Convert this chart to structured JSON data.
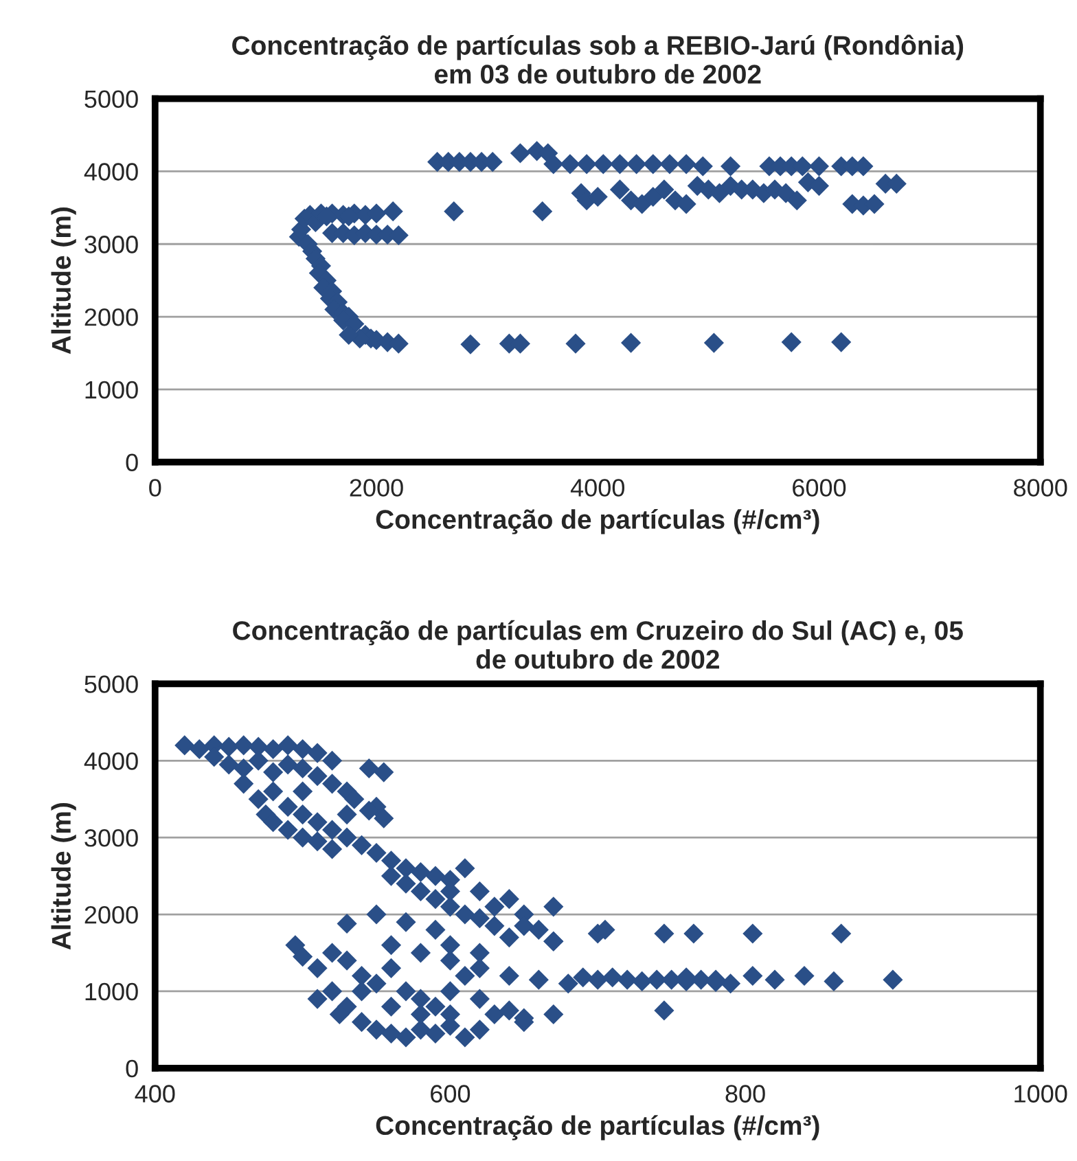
{
  "chart_data": [
    {
      "type": "scatter",
      "title": "Concentração de partículas sob a REBIO-Jarú (Rondônia)\nem 03 de outubro de 2002",
      "xlabel": "Concentração de partículas (#/cm³)",
      "ylabel": "Altitude (m)",
      "color": "#2a4f88",
      "marker": "diamond",
      "grid": "y",
      "xlim": [
        0,
        8000
      ],
      "xticks": [
        0,
        2000,
        4000,
        6000,
        8000
      ],
      "ylim": [
        0,
        5000
      ],
      "yticks": [
        0,
        1000,
        2000,
        3000,
        4000,
        5000
      ],
      "x": [
        1300,
        1320,
        1350,
        1400,
        1450,
        1380,
        1420,
        1450,
        1500,
        1480,
        1550,
        1520,
        1600,
        1580,
        1650,
        1620,
        1700,
        1750,
        1700,
        1800,
        1900,
        1950,
        2000,
        2100,
        2200,
        1850,
        1750,
        1500,
        1600,
        1700,
        1800,
        1900,
        2000,
        1550,
        1750,
        1600,
        1700,
        1800,
        1900,
        2000,
        2100,
        2200,
        2150,
        2700,
        3500,
        2850,
        3200,
        3300,
        3800,
        4300,
        5050,
        5750,
        6200,
        2550,
        2650,
        2750,
        2850,
        2950,
        3050,
        3300,
        3450,
        3550,
        3600,
        3750,
        3900,
        4050,
        4200,
        4350,
        4500,
        4650,
        4800,
        4950,
        5200,
        5550,
        5650,
        5750,
        5850,
        6000,
        6200,
        6300,
        6400,
        3850,
        3900,
        4000,
        4200,
        4300,
        4400,
        4500,
        4600,
        4700,
        4800,
        4900,
        5000,
        5100,
        5200,
        5300,
        5400,
        5500,
        5600,
        5700,
        5800,
        5900,
        6000,
        6300,
        6400,
        6500,
        6600,
        6700
      ],
      "values": [
        3100,
        3200,
        3350,
        3400,
        3300,
        3000,
        2900,
        2800,
        2700,
        2600,
        2500,
        2400,
        2350,
        2250,
        2200,
        2100,
        2050,
        2000,
        1950,
        1900,
        1750,
        1700,
        1680,
        1650,
        1630,
        1700,
        1750,
        3420,
        3420,
        3400,
        3420,
        3400,
        3420,
        3380,
        3380,
        3150,
        3150,
        3120,
        3150,
        3130,
        3130,
        3120,
        3450,
        3450,
        3450,
        1620,
        1630,
        1630,
        1630,
        1640,
        1640,
        1650,
        1650,
        4130,
        4130,
        4130,
        4130,
        4130,
        4130,
        4250,
        4280,
        4250,
        4100,
        4100,
        4100,
        4100,
        4100,
        4100,
        4100,
        4100,
        4100,
        4070,
        4070,
        4070,
        4070,
        4070,
        4070,
        4070,
        4070,
        4070,
        4070,
        3700,
        3600,
        3650,
        3750,
        3600,
        3550,
        3650,
        3750,
        3600,
        3550,
        3800,
        3750,
        3700,
        3800,
        3750,
        3750,
        3700,
        3750,
        3700,
        3600,
        3850,
        3800,
        3550,
        3530,
        3550,
        3830,
        3830
      ]
    },
    {
      "type": "scatter",
      "title": "Concentração de partículas em Cruzeiro do Sul (AC) e, 05\nde outubro de 2002",
      "xlabel": "Concentração de partículas (#/cm³)",
      "ylabel": "Altitude (m)",
      "color": "#2a4f88",
      "marker": "diamond",
      "grid": "y",
      "xlim": [
        400,
        1000
      ],
      "xticks": [
        400,
        600,
        800,
        1000
      ],
      "ylim": [
        0,
        5000
      ],
      "yticks": [
        0,
        1000,
        2000,
        3000,
        4000,
        5000
      ],
      "x": [
        420,
        430,
        440,
        450,
        460,
        470,
        480,
        490,
        500,
        510,
        520,
        440,
        450,
        460,
        470,
        480,
        490,
        500,
        510,
        520,
        530,
        535,
        545,
        555,
        550,
        460,
        470,
        475,
        480,
        490,
        500,
        510,
        520,
        530,
        540,
        500,
        510,
        520,
        545,
        555,
        530,
        480,
        490,
        500,
        550,
        560,
        570,
        580,
        590,
        600,
        610,
        560,
        570,
        580,
        590,
        600,
        610,
        620,
        630,
        640,
        650,
        630,
        650,
        670,
        600,
        620,
        550,
        570,
        590,
        530,
        495,
        500,
        510,
        520,
        530,
        540,
        550,
        560,
        570,
        580,
        590,
        600,
        520,
        530,
        540,
        550,
        560,
        570,
        580,
        590,
        600,
        610,
        620,
        630,
        640,
        650,
        560,
        580,
        600,
        620,
        640,
        660,
        510,
        525,
        540,
        560,
        580,
        600,
        620,
        610,
        600,
        620,
        640,
        660,
        670,
        680,
        690,
        700,
        710,
        720,
        730,
        740,
        750,
        760,
        770,
        780,
        790,
        805,
        820,
        840,
        860,
        900,
        760,
        780,
        700,
        705,
        745,
        765,
        805,
        865,
        670,
        745,
        650,
        670
      ],
      "values": [
        4200,
        4150,
        4200,
        4180,
        4200,
        4180,
        4150,
        4200,
        4150,
        4100,
        4000,
        4050,
        3950,
        3900,
        4000,
        3850,
        3950,
        3900,
        3800,
        3700,
        3600,
        3500,
        3900,
        3850,
        3400,
        3700,
        3500,
        3300,
        3200,
        3100,
        3300,
        3200,
        3100,
        3000,
        2900,
        3000,
        2950,
        2850,
        3350,
        3250,
        3300,
        3600,
        3400,
        3600,
        2800,
        2700,
        2600,
        2550,
        2500,
        2450,
        2600,
        2500,
        2400,
        2300,
        2200,
        2100,
        2000,
        1950,
        2100,
        2200,
        2000,
        1850,
        1850,
        2100,
        2300,
        2300,
        2000,
        1900,
        1800,
        1880,
        1600,
        1450,
        1300,
        1500,
        1400,
        1200,
        1100,
        1300,
        1000,
        900,
        800,
        700,
        1000,
        800,
        600,
        500,
        450,
        400,
        500,
        450,
        550,
        400,
        500,
        700,
        750,
        600,
        1600,
        1500,
        1400,
        1300,
        1200,
        1150,
        900,
        700,
        1000,
        800,
        700,
        1000,
        900,
        1200,
        1600,
        1500,
        1700,
        1800,
        1650,
        1100,
        1180,
        1150,
        1180,
        1150,
        1130,
        1150,
        1150,
        1130,
        1150,
        1120,
        1100,
        1200,
        1150,
        1200,
        1130,
        1150,
        1180,
        1150,
        1750,
        1800,
        1750,
        1750,
        1750,
        1750,
        1650,
        750,
        650,
        700
      ]
    }
  ]
}
